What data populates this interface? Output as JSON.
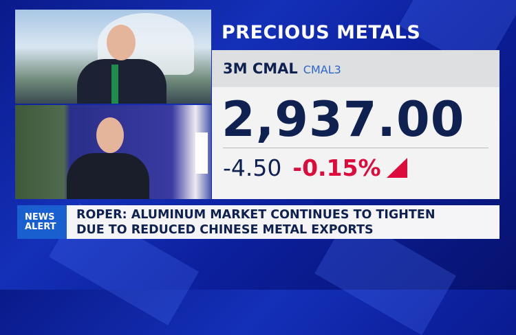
{
  "panel": {
    "title": "PRECIOUS METALS",
    "instrument_name": "3M CMAL",
    "instrument_code": "CMAL3",
    "price": "2,937.00",
    "change": "-4.50",
    "change_percent": "-0.15%",
    "direction_icon": "triangle-down-icon",
    "colors": {
      "negative": "#dc0b3c",
      "text": "#0f2150",
      "code": "#2a66c7"
    }
  },
  "news_alert": {
    "badge_line1": "NEWS",
    "badge_line2": "ALERT",
    "headline_line1": "ROPER: ALUMINUM MARKET CONTINUES TO TIGHTEN",
    "headline_line2": "DUE TO REDUCED CHINESE METAL EXPORTS",
    "badge_color": "#1a5fd0"
  }
}
